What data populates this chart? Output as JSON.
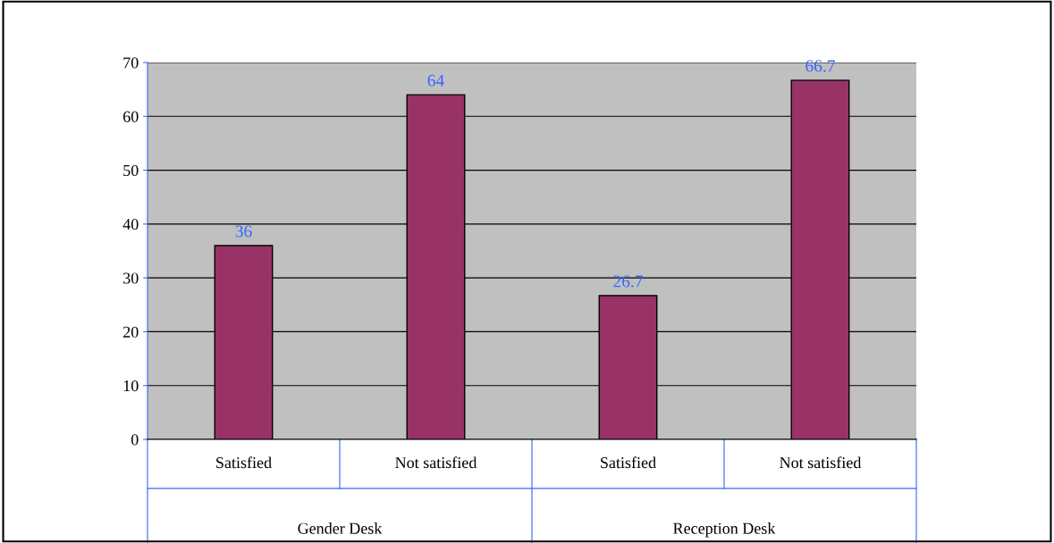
{
  "chart_data": {
    "type": "bar",
    "categories": [
      "Satisfied",
      "Not satisfied",
      "Satisfied",
      "Not satisfied"
    ],
    "values": [
      36,
      64,
      26.7,
      66.7
    ],
    "color": "#993366",
    "ylim": [
      0,
      70
    ],
    "yticks": [
      0,
      10,
      20,
      30,
      40,
      50,
      60,
      70
    ],
    "grid": "y",
    "data_labels": true,
    "legend": false,
    "annotations": [
      "Gender Desk",
      "Reception Desk"
    ]
  }
}
